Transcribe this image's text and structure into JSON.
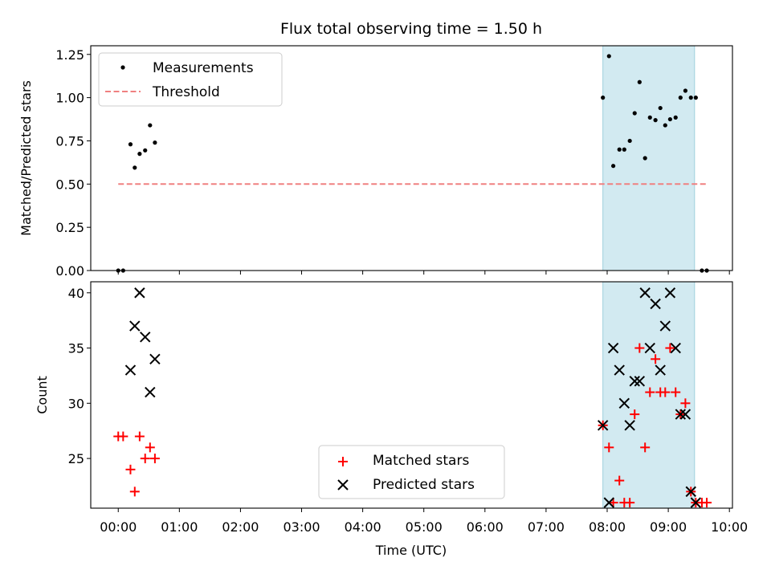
{
  "chart_data": [
    {
      "type": "scatter",
      "title": "Flux total observing time = 1.50 h",
      "ylabel": "Matched/Predicted stars",
      "xlabel": "",
      "xlim": [
        -0.45,
        10.05
      ],
      "ylim": [
        0,
        1.3
      ],
      "yticks": [
        0,
        0.25,
        0.5,
        0.75,
        1.0,
        1.25
      ],
      "ytick_labels": [
        "0.00",
        "0.25",
        "0.50",
        "0.75",
        "1.00",
        "1.25"
      ],
      "shaded_region": {
        "x": [
          7.93,
          9.43
        ],
        "color": "#add8e6"
      },
      "legend": {
        "position": "upper left",
        "entries": [
          "Measurements",
          "Threshold"
        ]
      },
      "series": [
        {
          "name": "Measurements",
          "color": "#000000",
          "marker": "dot",
          "x": [
            0.0,
            0.08,
            0.2,
            0.27,
            0.35,
            0.44,
            0.52,
            0.6,
            7.93,
            8.03,
            8.1,
            8.2,
            8.28,
            8.37,
            8.45,
            8.53,
            8.62,
            8.7,
            8.79,
            8.87,
            8.95,
            9.03,
            9.12,
            9.2,
            9.28,
            9.37,
            9.45,
            9.55,
            9.63
          ],
          "y": [
            0.0,
            0.0,
            0.73,
            0.595,
            0.675,
            0.695,
            0.84,
            0.74,
            1.0,
            1.24,
            0.605,
            0.7,
            0.7,
            0.75,
            0.91,
            1.09,
            0.65,
            0.885,
            0.87,
            0.94,
            0.84,
            0.875,
            0.885,
            1.0,
            1.04,
            1.0,
            1.0,
            0.0,
            0.0
          ]
        },
        {
          "name": "Threshold",
          "color": "#f08080",
          "style": "dashed",
          "x": [
            0.0,
            9.63
          ],
          "y": [
            0.5,
            0.5
          ]
        }
      ]
    },
    {
      "type": "scatter",
      "title": "",
      "ylabel": "Count",
      "xlabel": "Time (UTC)",
      "xlim": [
        -0.45,
        10.05
      ],
      "ylim": [
        20.5,
        41.0
      ],
      "yticks": [
        25,
        30,
        35,
        40
      ],
      "ytick_labels": [
        "25",
        "30",
        "35",
        "40"
      ],
      "xticks": [
        0,
        1,
        2,
        3,
        4,
        5,
        6,
        7,
        8,
        9,
        10
      ],
      "xtick_labels": [
        "00:00",
        "01:00",
        "02:00",
        "03:00",
        "04:00",
        "05:00",
        "06:00",
        "07:00",
        "08:00",
        "09:00",
        "10:00"
      ],
      "shaded_region": {
        "x": [
          7.93,
          9.43
        ],
        "color": "#add8e6"
      },
      "legend": {
        "position": "lower center",
        "entries": [
          "Matched stars",
          "Predicted stars"
        ]
      },
      "series": [
        {
          "name": "Matched stars",
          "color": "#ff0000",
          "marker": "plus",
          "x": [
            0.0,
            0.08,
            0.2,
            0.27,
            0.35,
            0.44,
            0.52,
            0.6,
            7.93,
            8.03,
            8.1,
            8.2,
            8.28,
            8.37,
            8.45,
            8.53,
            8.62,
            8.7,
            8.79,
            8.87,
            8.95,
            9.03,
            9.12,
            9.2,
            9.28,
            9.37,
            9.45,
            9.55,
            9.63
          ],
          "y": [
            27,
            27,
            24,
            22,
            27,
            25,
            26,
            25,
            28,
            26,
            21,
            23,
            21,
            21,
            29,
            35,
            26,
            31,
            34,
            31,
            31,
            35,
            31,
            29,
            30,
            22,
            21,
            21,
            21
          ]
        },
        {
          "name": "Predicted stars",
          "color": "#000000",
          "marker": "x",
          "x": [
            0.2,
            0.27,
            0.35,
            0.44,
            0.52,
            0.6,
            7.93,
            8.03,
            8.1,
            8.2,
            8.28,
            8.37,
            8.45,
            8.53,
            8.62,
            8.7,
            8.79,
            8.87,
            8.95,
            9.03,
            9.12,
            9.2,
            9.28,
            9.37,
            9.45
          ],
          "y": [
            33,
            37,
            40,
            36,
            31,
            34,
            28,
            21,
            35,
            33,
            30,
            28,
            32,
            32,
            40,
            35,
            39,
            33,
            37,
            40,
            35,
            29,
            29,
            22,
            21
          ]
        }
      ]
    }
  ]
}
